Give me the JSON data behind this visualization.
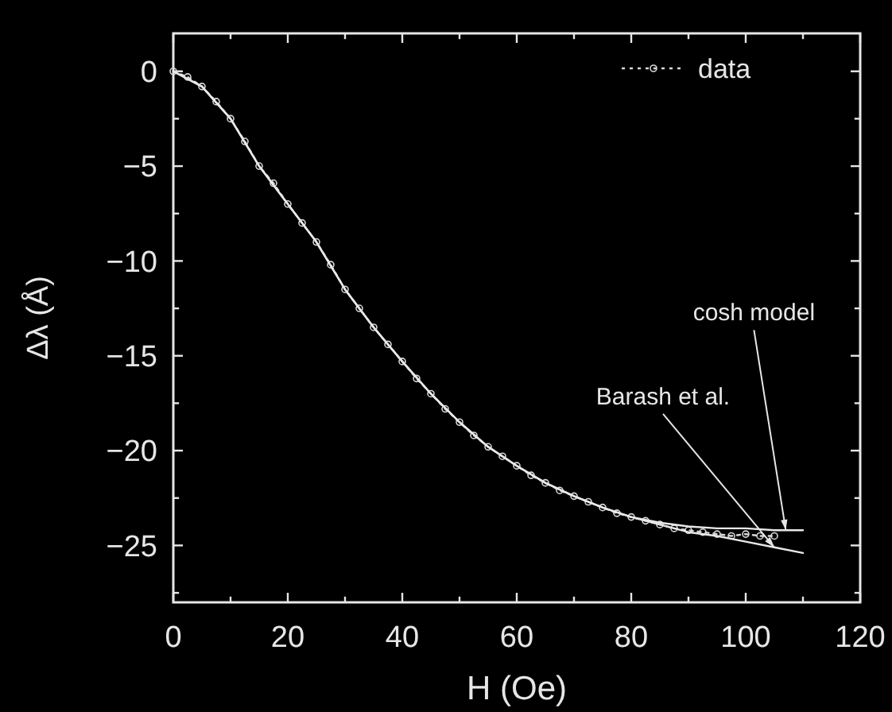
{
  "chart_data": {
    "type": "line",
    "xlabel": "H (Oe)",
    "ylabel": "Δλ (Å)",
    "xlim": [
      0,
      120
    ],
    "ylim": [
      -28,
      2
    ],
    "xticks": [
      0,
      {
        "value": 10,
        "label": null
      },
      20,
      {
        "value": 30,
        "label": null
      },
      40,
      {
        "value": 50,
        "label": null
      },
      60,
      {
        "value": 70,
        "label": null
      },
      80,
      {
        "value": 90,
        "label": null
      },
      100,
      {
        "value": 110,
        "label": null
      },
      120
    ],
    "yticks": [
      0,
      {
        "value": -2.5,
        "label": null
      },
      {
        "value": -5,
        "label": "−5"
      },
      {
        "value": -7.5,
        "label": null
      },
      {
        "value": -10,
        "label": "−10"
      },
      {
        "value": -12.5,
        "label": null
      },
      {
        "value": -15,
        "label": "−15"
      },
      {
        "value": -17.5,
        "label": null
      },
      {
        "value": -20,
        "label": "−20"
      },
      {
        "value": -22.5,
        "label": null
      },
      {
        "value": -25,
        "label": "−25"
      },
      {
        "value": -27.5,
        "label": null
      }
    ],
    "legend": "top right",
    "grid": false,
    "annotations": [
      {
        "text": "cosh model",
        "x": 107,
        "y": -24.2
      },
      {
        "text": "Barash et al.",
        "x": 105,
        "y": -25.1
      }
    ],
    "series": [
      {
        "name": "data",
        "color": "#d8d8d8",
        "marker": "circle",
        "line_style": "dotted",
        "x": [
          0,
          2.5,
          5,
          7.5,
          10,
          12.5,
          15,
          17.5,
          20,
          22.5,
          25,
          27.5,
          30,
          32.5,
          35,
          37.5,
          40,
          42.5,
          45,
          47.5,
          50,
          52.5,
          55,
          57.5,
          60,
          62.5,
          65,
          67.5,
          70,
          72.5,
          75,
          77.5,
          80,
          82.5,
          85,
          87.5,
          90,
          92.5,
          95,
          97.5,
          100,
          102.5,
          105
        ],
        "values": [
          0,
          -0.3,
          -0.8,
          -1.6,
          -2.5,
          -3.7,
          -5,
          -5.9,
          -7,
          -8,
          -9,
          -10.2,
          -11.5,
          -12.5,
          -13.5,
          -14.4,
          -15.3,
          -16.2,
          -17,
          -17.8,
          -18.5,
          -19.2,
          -19.8,
          -20.3,
          -20.8,
          -21.3,
          -21.7,
          -22.1,
          -22.4,
          -22.7,
          -23,
          -23.3,
          -23.5,
          -23.7,
          -23.9,
          -24.1,
          -24.2,
          -24.3,
          -24.4,
          -24.5,
          -24.4,
          -24.5,
          -24.5
        ]
      },
      {
        "color": "#e8e8e8",
        "line_style": "solid",
        "x": [
          0,
          5,
          10,
          15,
          20,
          25,
          30,
          35,
          40,
          45,
          50,
          55,
          60,
          65,
          70,
          75,
          80,
          85,
          90,
          95,
          100,
          105,
          110
        ],
        "values": [
          0,
          -0.8,
          -2.5,
          -5,
          -7,
          -9,
          -11.5,
          -13.5,
          -15.3,
          -17,
          -18.5,
          -19.8,
          -20.8,
          -21.7,
          -22.4,
          -23,
          -23.5,
          -23.8,
          -24,
          -24.1,
          -24.1,
          -24.2,
          -24.2
        ]
      },
      {
        "color": "#e8e8e8",
        "line_style": "solid",
        "x": [
          0,
          5,
          10,
          15,
          20,
          25,
          30,
          35,
          40,
          45,
          50,
          55,
          60,
          65,
          70,
          75,
          80,
          85,
          90,
          95,
          100,
          105,
          110
        ],
        "values": [
          0,
          -0.8,
          -2.5,
          -5,
          -7,
          -9,
          -11.5,
          -13.5,
          -15.3,
          -17,
          -18.5,
          -19.8,
          -20.8,
          -21.7,
          -22.4,
          -23,
          -23.5,
          -23.9,
          -24.3,
          -24.5,
          -24.8,
          -25.1,
          -25.4
        ]
      }
    ]
  }
}
